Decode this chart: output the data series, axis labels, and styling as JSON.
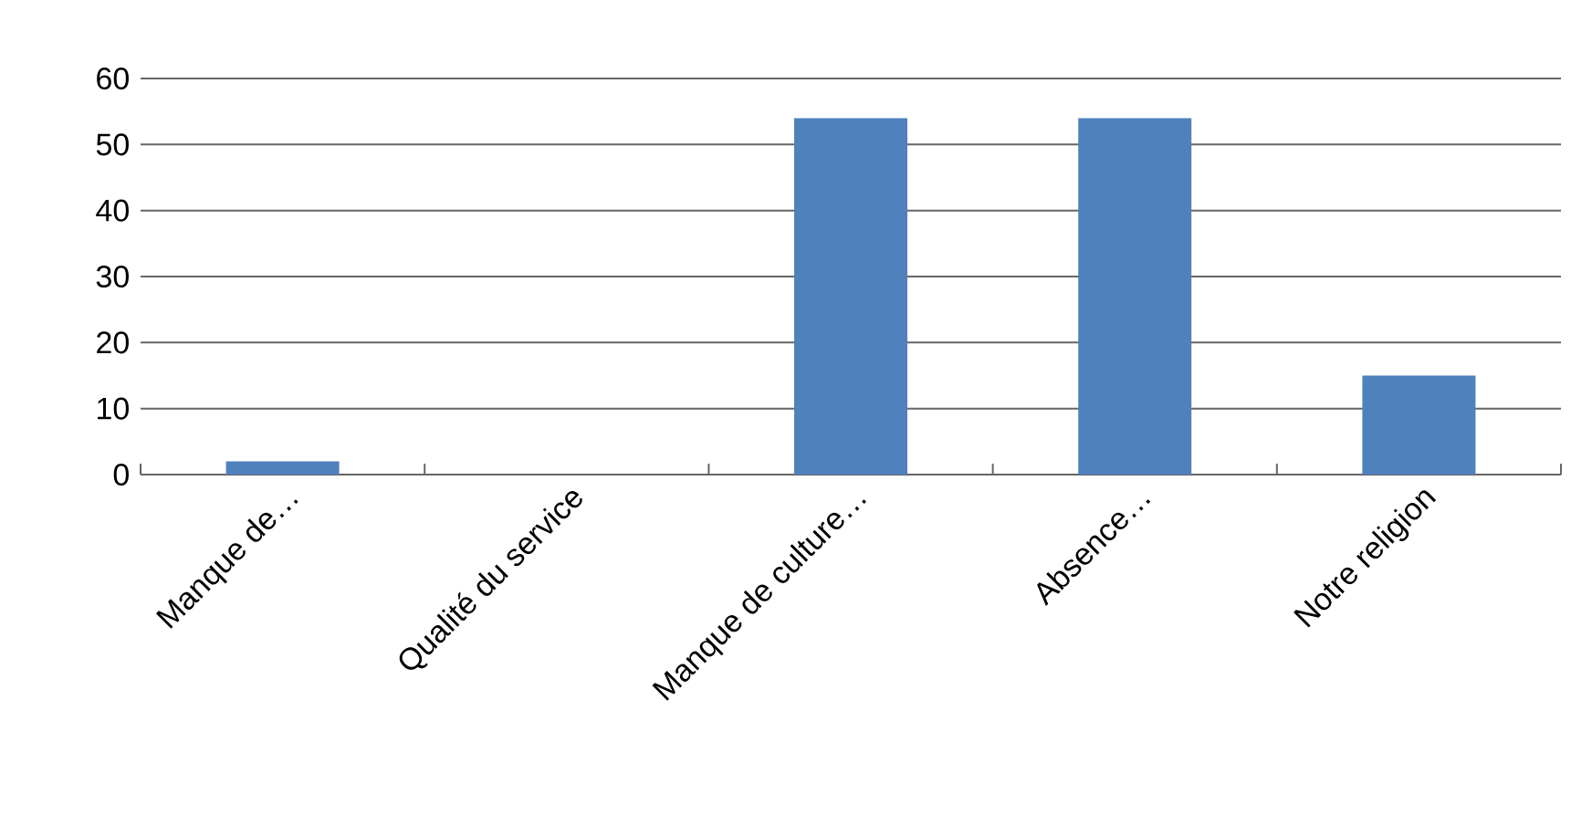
{
  "chart_data": {
    "type": "bar",
    "categories": [
      "Manque de…",
      "Qualité du service",
      "Manque de culture…",
      "Absence…",
      "Notre religion"
    ],
    "values": [
      2,
      0,
      54,
      54,
      15
    ],
    "color": "#4f81bd",
    "ylim": [
      0,
      60
    ],
    "yticks": [
      0,
      10,
      20,
      30,
      40,
      50,
      60
    ],
    "grid": "y"
  }
}
